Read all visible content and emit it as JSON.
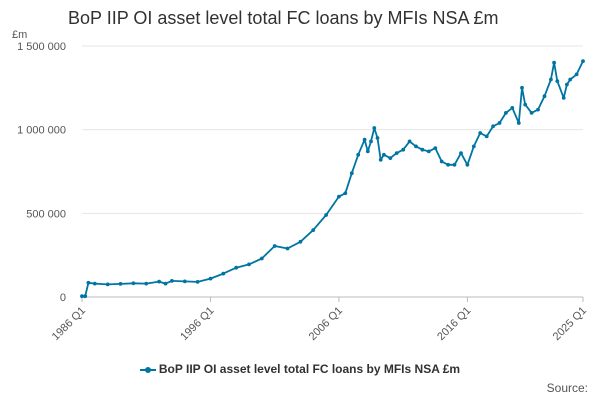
{
  "title": "BoP IIP OI asset level total FC loans by MFIs NSA £m",
  "source_label": "Source:",
  "chart_data": {
    "type": "line",
    "ylabel": "£m",
    "ylim": [
      0,
      1500000
    ],
    "yticks": [
      0,
      500000,
      1000000,
      1500000
    ],
    "ytick_labels": [
      "0",
      "500 000",
      "1 000 000",
      "1 500 000"
    ],
    "xlim": [
      1986.0,
      2025.0
    ],
    "xticks": [
      1986.0,
      1996.0,
      2006.0,
      2016.0,
      2025.0
    ],
    "xtick_labels": [
      "1986 Q1",
      "1996 Q1",
      "2006 Q1",
      "2016 Q1",
      "2025 Q1"
    ],
    "grid": "horizontal",
    "legend_position": "bottom",
    "color": "#0075a3",
    "series": [
      {
        "name": "BoP IIP OI asset level total FC loans by MFIs NSA £m",
        "points": [
          [
            1986.0,
            5000
          ],
          [
            1986.25,
            5000
          ],
          [
            1986.5,
            85000
          ],
          [
            1987.0,
            80000
          ],
          [
            1988.0,
            75000
          ],
          [
            1989.0,
            78000
          ],
          [
            1990.0,
            82000
          ],
          [
            1991.0,
            80000
          ],
          [
            1992.0,
            92000
          ],
          [
            1992.5,
            80000
          ],
          [
            1993.0,
            96000
          ],
          [
            1994.0,
            93000
          ],
          [
            1995.0,
            90000
          ],
          [
            1996.0,
            110000
          ],
          [
            1997.0,
            140000
          ],
          [
            1998.0,
            175000
          ],
          [
            1999.0,
            195000
          ],
          [
            2000.0,
            230000
          ],
          [
            2001.0,
            305000
          ],
          [
            2002.0,
            290000
          ],
          [
            2003.0,
            330000
          ],
          [
            2004.0,
            400000
          ],
          [
            2005.0,
            490000
          ],
          [
            2006.0,
            600000
          ],
          [
            2006.5,
            620000
          ],
          [
            2007.0,
            740000
          ],
          [
            2007.5,
            850000
          ],
          [
            2008.0,
            940000
          ],
          [
            2008.25,
            870000
          ],
          [
            2008.5,
            930000
          ],
          [
            2008.75,
            1010000
          ],
          [
            2009.0,
            950000
          ],
          [
            2009.25,
            820000
          ],
          [
            2009.5,
            850000
          ],
          [
            2010.0,
            830000
          ],
          [
            2010.5,
            860000
          ],
          [
            2011.0,
            880000
          ],
          [
            2011.5,
            930000
          ],
          [
            2012.0,
            900000
          ],
          [
            2012.5,
            880000
          ],
          [
            2013.0,
            870000
          ],
          [
            2013.5,
            890000
          ],
          [
            2014.0,
            810000
          ],
          [
            2014.5,
            790000
          ],
          [
            2015.0,
            790000
          ],
          [
            2015.5,
            860000
          ],
          [
            2016.0,
            790000
          ],
          [
            2016.5,
            900000
          ],
          [
            2017.0,
            980000
          ],
          [
            2017.5,
            960000
          ],
          [
            2018.0,
            1020000
          ],
          [
            2018.5,
            1040000
          ],
          [
            2019.0,
            1100000
          ],
          [
            2019.5,
            1130000
          ],
          [
            2020.0,
            1040000
          ],
          [
            2020.25,
            1250000
          ],
          [
            2020.5,
            1150000
          ],
          [
            2021.0,
            1100000
          ],
          [
            2021.5,
            1120000
          ],
          [
            2022.0,
            1200000
          ],
          [
            2022.5,
            1300000
          ],
          [
            2022.75,
            1400000
          ],
          [
            2023.0,
            1290000
          ],
          [
            2023.5,
            1190000
          ],
          [
            2023.75,
            1270000
          ],
          [
            2024.0,
            1300000
          ],
          [
            2024.5,
            1330000
          ],
          [
            2025.0,
            1410000
          ]
        ]
      }
    ]
  }
}
